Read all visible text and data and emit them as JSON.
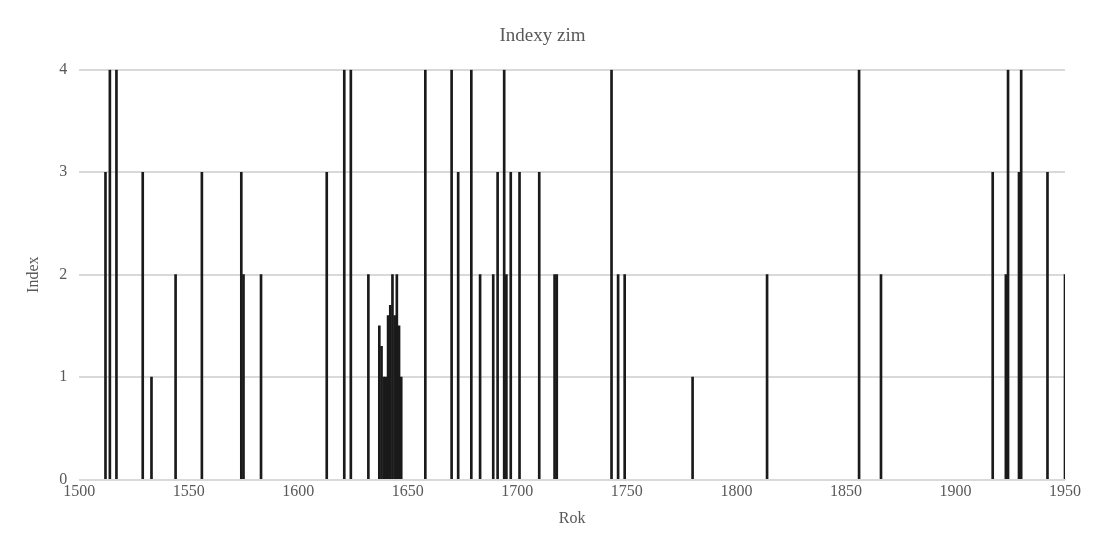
{
  "chart_data": {
    "type": "bar",
    "title": "Indexy zim",
    "xlabel": "Rok",
    "ylabel": "Index",
    "x": [
      1512,
      1514,
      1517,
      1529,
      1533,
      1544,
      1556,
      1574,
      1575,
      1583,
      1613,
      1621,
      1624,
      1632,
      1637,
      1638,
      1639,
      1640,
      1641,
      1642,
      1643,
      1644,
      1645,
      1646,
      1647,
      1658,
      1670,
      1673,
      1679,
      1683,
      1689,
      1691,
      1694,
      1695,
      1697,
      1701,
      1710,
      1717,
      1718,
      1743,
      1746,
      1749,
      1780,
      1814,
      1856,
      1866,
      1917,
      1923,
      1924,
      1929,
      1930,
      1942,
      1950
    ],
    "values": [
      3,
      4,
      4,
      3,
      1,
      2,
      3,
      3,
      2,
      2,
      3,
      4,
      4,
      2,
      1.5,
      1.3,
      1,
      1,
      1.6,
      1.7,
      2,
      1.6,
      2,
      1.5,
      1,
      4,
      4,
      3,
      4,
      2,
      2,
      3,
      4,
      2,
      3,
      3,
      3,
      2,
      2,
      4,
      2,
      2,
      1,
      2,
      4,
      2,
      3,
      2,
      4,
      3,
      4,
      3,
      2
    ],
    "color": "#1a1a1a",
    "xlim": [
      1500,
      1950
    ],
    "xticks": [
      1500,
      1550,
      1600,
      1650,
      1700,
      1750,
      1800,
      1850,
      1900,
      1950
    ],
    "ylim": [
      0,
      4
    ],
    "yticks": [
      0,
      1,
      2,
      3,
      4
    ],
    "grid": "y"
  }
}
